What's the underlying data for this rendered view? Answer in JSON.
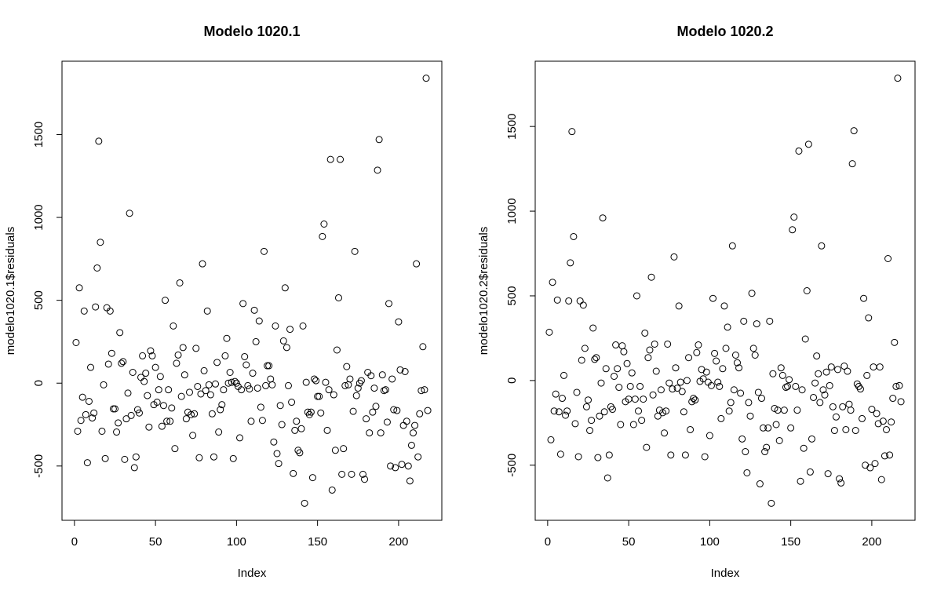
{
  "chart_data": [
    {
      "type": "scatter",
      "title": "Modelo 1020.1",
      "xlabel": "Index",
      "ylabel": "modelo1020.1$residuals",
      "color": "#000000",
      "xlim": [
        -7.68,
        226.68
      ],
      "xticks": [
        0,
        50,
        100,
        150,
        200
      ],
      "ylim": [
        -827.6,
        1942.6
      ],
      "yticks": [
        -500,
        0,
        500,
        1000,
        1500
      ],
      "x": [
        1,
        2,
        3,
        4,
        5,
        6,
        7,
        8,
        9,
        10,
        11,
        12,
        13,
        14,
        15,
        16,
        17,
        18,
        19,
        20,
        21,
        22,
        23,
        24,
        25,
        26,
        27,
        28,
        29,
        30,
        31,
        32,
        33,
        34,
        35,
        36,
        37,
        38,
        39,
        40,
        41,
        42,
        43,
        44,
        45,
        46,
        47,
        48,
        49,
        50,
        51,
        52,
        53,
        54,
        55,
        56,
        57,
        58,
        59,
        60,
        61,
        62,
        63,
        64,
        65,
        66,
        67,
        68,
        69,
        70,
        71,
        72,
        73,
        74,
        75,
        76,
        77,
        78,
        79,
        80,
        81,
        82,
        83,
        84,
        85,
        86,
        87,
        88,
        89,
        90,
        91,
        92,
        93,
        94,
        95,
        96,
        97,
        98,
        99,
        100,
        101,
        102,
        103,
        104,
        105,
        106,
        107,
        108,
        109,
        110,
        111,
        112,
        113,
        114,
        115,
        116,
        117,
        118,
        119,
        120,
        121,
        122,
        123,
        124,
        125,
        126,
        127,
        128,
        129,
        130,
        131,
        132,
        133,
        134,
        135,
        136,
        137,
        138,
        139,
        140,
        141,
        142,
        143,
        144,
        145,
        146,
        147,
        148,
        149,
        150,
        151,
        152,
        153,
        154,
        155,
        156,
        157,
        158,
        159,
        160,
        161,
        162,
        163,
        164,
        165,
        166,
        167,
        168,
        169,
        170,
        171,
        172,
        173,
        174,
        175,
        176,
        177,
        178,
        179,
        180,
        181,
        182,
        183,
        184,
        185,
        186,
        187,
        188,
        189,
        190,
        191,
        192,
        193,
        194,
        195,
        196,
        197,
        198,
        199,
        200,
        201,
        202,
        203,
        204,
        205,
        206,
        207,
        208,
        209,
        210,
        211,
        212,
        213,
        214,
        215,
        216,
        217,
        218
      ],
      "values": [
        245,
        -290,
        575,
        -225,
        -85,
        435,
        -190,
        -480,
        -110,
        95,
        -210,
        -180,
        460,
        695,
        1460,
        850,
        -290,
        -10,
        -455,
        455,
        115,
        435,
        180,
        -155,
        -155,
        -295,
        -240,
        305,
        120,
        130,
        -460,
        -215,
        -60,
        1025,
        -195,
        65,
        -510,
        -445,
        -160,
        -180,
        35,
        165,
        10,
        60,
        -75,
        -265,
        195,
        165,
        -130,
        95,
        -115,
        -40,
        40,
        -260,
        -135,
        500,
        -230,
        -40,
        -230,
        -150,
        345,
        -395,
        120,
        170,
        605,
        -80,
        215,
        50,
        -215,
        -175,
        -55,
        -190,
        -315,
        -185,
        210,
        -20,
        -450,
        -65,
        720,
        75,
        -45,
        435,
        -10,
        -70,
        -185,
        -445,
        -5,
        125,
        -295,
        -160,
        -130,
        -40,
        165,
        270,
        0,
        65,
        5,
        -455,
        10,
        0,
        -20,
        -330,
        -40,
        480,
        160,
        110,
        -15,
        -35,
        -230,
        60,
        440,
        250,
        -30,
        375,
        -145,
        -225,
        795,
        -15,
        105,
        105,
        25,
        -10,
        -355,
        345,
        -425,
        -485,
        -135,
        -250,
        255,
        575,
        215,
        -15,
        325,
        -115,
        -545,
        -285,
        -230,
        -405,
        -420,
        -275,
        345,
        -725,
        5,
        -175,
        -190,
        -175,
        -570,
        25,
        15,
        -80,
        -80,
        -180,
        885,
        960,
        5,
        -285,
        -40,
        1350,
        -645,
        -70,
        -405,
        200,
        515,
        1350,
        -550,
        -395,
        -15,
        100,
        -10,
        25,
        -550,
        -170,
        795,
        -75,
        -30,
        0,
        15,
        -550,
        -580,
        -215,
        65,
        -300,
        45,
        -175,
        -30,
        -140,
        1285,
        1470,
        -300,
        50,
        -45,
        -40,
        -235,
        480,
        -500,
        25,
        -160,
        -510,
        -165,
        370,
        80,
        -490,
        -255,
        70,
        -230,
        -500,
        -590,
        -375,
        -300,
        -255,
        720,
        -445,
        -185,
        -45,
        220,
        -40,
        1840,
        -165
      ]
    },
    {
      "type": "scatter",
      "title": "Modelo 1020.2",
      "xlabel": "Index",
      "ylabel": "modelo1020.2$residuals",
      "color": "#000000",
      "xlim": [
        -7.68,
        226.68
      ],
      "xticks": [
        0,
        50,
        100,
        150,
        200
      ],
      "ylim": [
        -825.4,
        1885.4
      ],
      "yticks": [
        -500,
        0,
        500,
        1000,
        1500
      ],
      "x": [
        1,
        2,
        3,
        4,
        5,
        6,
        7,
        8,
        9,
        10,
        11,
        12,
        13,
        14,
        15,
        16,
        17,
        18,
        19,
        20,
        21,
        22,
        23,
        24,
        25,
        26,
        27,
        28,
        29,
        30,
        31,
        32,
        33,
        34,
        35,
        36,
        37,
        38,
        39,
        40,
        41,
        42,
        43,
        44,
        45,
        46,
        47,
        48,
        49,
        50,
        51,
        52,
        53,
        54,
        55,
        56,
        57,
        58,
        59,
        60,
        61,
        62,
        63,
        64,
        65,
        66,
        67,
        68,
        69,
        70,
        71,
        72,
        73,
        74,
        75,
        76,
        77,
        78,
        79,
        80,
        81,
        82,
        83,
        84,
        85,
        86,
        87,
        88,
        89,
        90,
        91,
        92,
        93,
        94,
        95,
        96,
        97,
        98,
        99,
        100,
        101,
        102,
        103,
        104,
        105,
        106,
        107,
        108,
        109,
        110,
        111,
        112,
        113,
        114,
        115,
        116,
        117,
        118,
        119,
        120,
        121,
        122,
        123,
        124,
        125,
        126,
        127,
        128,
        129,
        130,
        131,
        132,
        133,
        134,
        135,
        136,
        137,
        138,
        139,
        140,
        141,
        142,
        143,
        144,
        145,
        146,
        147,
        148,
        149,
        150,
        151,
        152,
        153,
        154,
        155,
        156,
        157,
        158,
        159,
        160,
        161,
        162,
        163,
        164,
        165,
        166,
        167,
        168,
        169,
        170,
        171,
        172,
        173,
        174,
        175,
        176,
        177,
        178,
        179,
        180,
        181,
        182,
        183,
        184,
        185,
        186,
        187,
        188,
        189,
        190,
        191,
        192,
        193,
        194,
        195,
        196,
        197,
        198,
        199,
        200,
        201,
        202,
        203,
        204,
        205,
        206,
        207,
        208,
        209,
        210,
        211,
        212,
        213,
        214,
        215,
        216,
        217,
        218
      ],
      "values": [
        285,
        -350,
        580,
        -180,
        -80,
        475,
        -185,
        -435,
        -105,
        30,
        -205,
        -180,
        470,
        695,
        1470,
        850,
        -255,
        -70,
        -450,
        470,
        120,
        445,
        190,
        -155,
        -115,
        -295,
        -235,
        310,
        125,
        135,
        -455,
        -210,
        -15,
        960,
        -185,
        70,
        -575,
        -440,
        -155,
        -170,
        25,
        210,
        70,
        -40,
        -260,
        205,
        170,
        -125,
        100,
        -110,
        -35,
        45,
        -260,
        -110,
        500,
        -180,
        -35,
        -235,
        -110,
        280,
        -395,
        135,
        180,
        610,
        -85,
        215,
        55,
        -210,
        -175,
        -55,
        -190,
        -310,
        -180,
        215,
        -15,
        -440,
        -50,
        730,
        75,
        -45,
        440,
        -10,
        -65,
        -185,
        -440,
        0,
        135,
        -290,
        -125,
        -105,
        -115,
        165,
        210,
        -5,
        65,
        10,
        -450,
        50,
        -10,
        -325,
        -30,
        485,
        160,
        115,
        -10,
        -35,
        -225,
        70,
        440,
        190,
        315,
        -180,
        -130,
        795,
        -55,
        150,
        105,
        75,
        -75,
        -345,
        350,
        -420,
        -545,
        -130,
        -210,
        515,
        190,
        150,
        335,
        -70,
        -610,
        -105,
        -280,
        -420,
        -395,
        -280,
        350,
        -725,
        40,
        -165,
        -260,
        -175,
        -355,
        75,
        30,
        -175,
        -40,
        -35,
        5,
        -280,
        890,
        965,
        -35,
        -175,
        1355,
        -595,
        -55,
        -400,
        245,
        530,
        1395,
        -540,
        -345,
        -100,
        -15,
        145,
        40,
        -130,
        795,
        -55,
        -85,
        50,
        -550,
        -30,
        80,
        -155,
        -295,
        -215,
        65,
        -580,
        -605,
        -155,
        85,
        -290,
        55,
        -140,
        -175,
        1280,
        1475,
        -295,
        -20,
        -35,
        -50,
        -225,
        485,
        -500,
        30,
        370,
        -515,
        -170,
        80,
        -490,
        -195,
        -255,
        80,
        -585,
        -240,
        -445,
        -290,
        720,
        -440,
        -245,
        -105,
        225,
        -35,
        1785,
        -30,
        -125
      ]
    }
  ]
}
